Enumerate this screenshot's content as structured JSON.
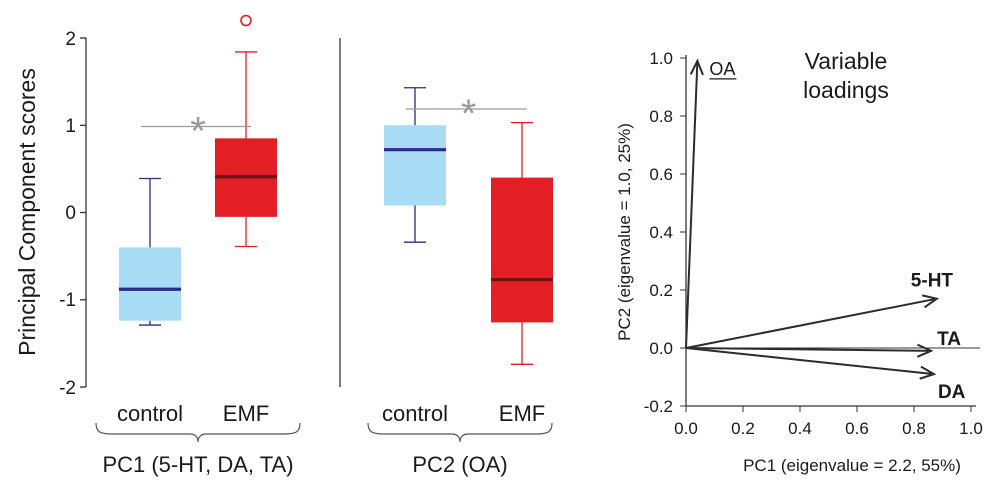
{
  "chart_data": [
    {
      "type": "boxplot",
      "ylabel": "Principal Component scores",
      "ylim": [
        -2,
        2
      ],
      "yticks": [
        "2",
        "1",
        "0",
        "-1",
        "-2"
      ],
      "colors": {
        "control": "#a8dcf5",
        "EMF": "#e31e24",
        "control_median": "#2a2a8a",
        "EMF_median": "#6b1414",
        "control_whisker": "#2a2a8a",
        "EMF_whisker": "#e31e24",
        "significance": "#9a9a9a"
      },
      "panels": [
        {
          "group_label": "PC1 (5-HT, DA, TA)",
          "significance": "*",
          "boxes": [
            {
              "category": "control",
              "min": -1.29,
              "q1": -1.24,
              "median": -0.88,
              "q3": -0.4,
              "max": 0.39,
              "outliers": []
            },
            {
              "category": "EMF",
              "min": -0.39,
              "q1": -0.05,
              "median": 0.41,
              "q3": 0.85,
              "max": 1.84,
              "outliers": [
                2.2
              ]
            }
          ]
        },
        {
          "group_label": "PC2 (OA)",
          "significance": "*",
          "boxes": [
            {
              "category": "control",
              "min": -0.34,
              "q1": 0.08,
              "median": 0.72,
              "q3": 1.0,
              "max": 1.43,
              "outliers": []
            },
            {
              "category": "EMF",
              "min": -1.74,
              "q1": -1.26,
              "median": -0.77,
              "q3": 0.4,
              "max": 1.03,
              "outliers": []
            }
          ]
        }
      ]
    },
    {
      "type": "biplot",
      "title": "Variable loadings",
      "xlabel": "PC1 (eigenvalue = 2.2, 55%)",
      "ylabel": "PC2 (eigenvalue = 1.0, 25%)",
      "xlim": [
        0.0,
        1.0
      ],
      "ylim": [
        -0.2,
        1.0
      ],
      "xticks": [
        "0.0",
        "0.2",
        "0.4",
        "0.6",
        "0.8",
        "1.0"
      ],
      "yticks": [
        "1.0",
        "0.8",
        "0.6",
        "0.4",
        "0.2",
        "0.0",
        "-0.2"
      ],
      "vectors": [
        {
          "label": "OA",
          "x": 0.04,
          "y": 0.99,
          "underline": true,
          "bold": false
        },
        {
          "label": "5-HT",
          "x": 0.88,
          "y": 0.17,
          "underline": false,
          "bold": true
        },
        {
          "label": "TA",
          "x": 0.86,
          "y": -0.01,
          "underline": false,
          "bold": true
        },
        {
          "label": "DA",
          "x": 0.87,
          "y": -0.09,
          "underline": false,
          "bold": true
        }
      ]
    }
  ]
}
